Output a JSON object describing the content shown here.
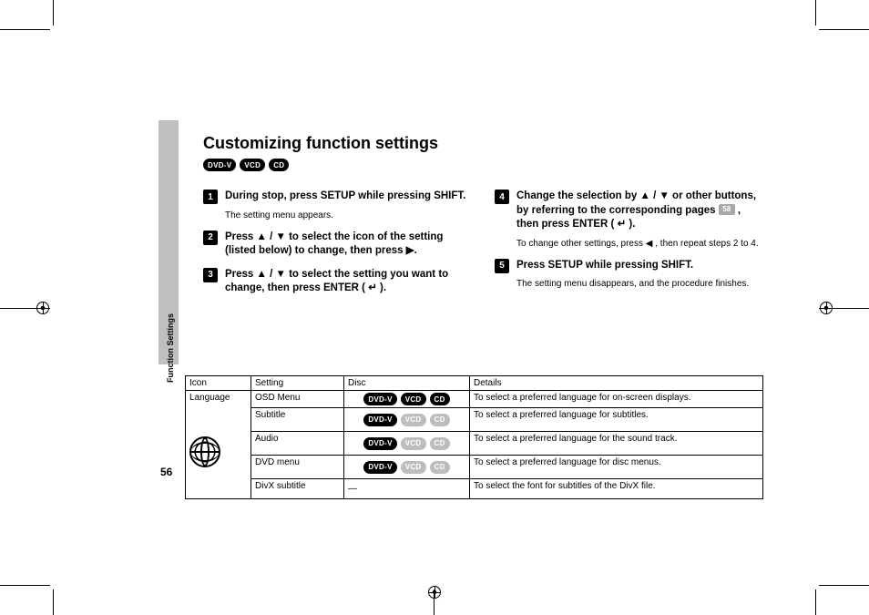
{
  "page_number": "56",
  "side_label": "Function Settings",
  "title": "Customizing function settings",
  "format_badges": [
    "DVD-V",
    "VCD",
    "CD"
  ],
  "steps_left": [
    {
      "num": "1",
      "title_parts": [
        "During stop, press SETUP while pressing SHIFT."
      ],
      "desc": "The setting menu appears."
    },
    {
      "num": "2",
      "title_parts": [
        "Press ",
        "▲",
        " / ",
        "▼",
        " to select the icon of the setting (listed below) to change, then press ",
        "▶",
        "."
      ]
    },
    {
      "num": "3",
      "title_parts": [
        "Press ",
        "▲",
        " / ",
        "▼",
        " to select the setting you want to change, then press ENTER ( ",
        "↵",
        " )."
      ]
    }
  ],
  "steps_right": [
    {
      "num": "4",
      "title_pre": "Change the selection by ",
      "title_arrows": [
        "▲",
        " / ",
        "▼"
      ],
      "title_mid": " or other buttons, by referring to the corresponding pages ",
      "page_ref": "58",
      "title_post1": " , then press ENTER ( ",
      "enter_symbol": "↵",
      "title_post2": " ).",
      "desc_pre": "To change other settings, press ",
      "desc_arrow": "◀",
      "desc_post": " , then repeat steps 2 to 4."
    },
    {
      "num": "5",
      "title": "Press SETUP while pressing SHIFT.",
      "desc": "The setting menu disappears, and the procedure finishes."
    }
  ],
  "table": {
    "headers": [
      "Icon",
      "Setting",
      "Disc",
      "Details"
    ],
    "icon_label": "Language",
    "rows": [
      {
        "setting": "OSD Menu",
        "badges": [
          [
            "DVD-V",
            false
          ],
          [
            "VCD",
            false
          ],
          [
            "CD",
            false
          ]
        ],
        "details": "To select a preferred language for on-screen displays."
      },
      {
        "setting": "Subtitle",
        "badges": [
          [
            "DVD-V",
            false
          ],
          [
            "VCD",
            true
          ],
          [
            "CD",
            true
          ]
        ],
        "details": "To select a preferred language for subtitles."
      },
      {
        "setting": "Audio",
        "badges": [
          [
            "DVD-V",
            false
          ],
          [
            "VCD",
            true
          ],
          [
            "CD",
            true
          ]
        ],
        "details": "To select a preferred language for the sound track."
      },
      {
        "setting": "DVD menu",
        "badges": [
          [
            "DVD-V",
            false
          ],
          [
            "VCD",
            true
          ],
          [
            "CD",
            true
          ]
        ],
        "details": "To select a preferred language for disc menus."
      },
      {
        "setting": "DivX subtitle",
        "dash": "—",
        "details": "To select the font for subtitles of the DivX file."
      }
    ]
  }
}
